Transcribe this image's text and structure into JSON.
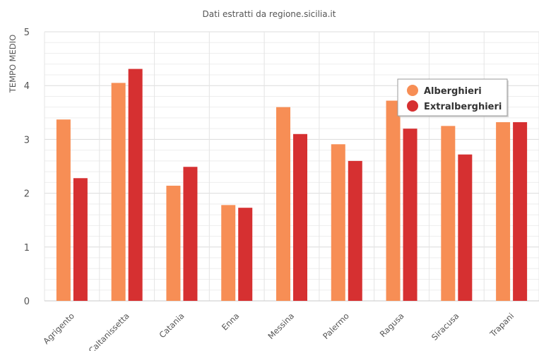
{
  "chart_data": {
    "type": "bar",
    "title": "Dati estratti da regione.sicilia.it",
    "ylabel": "TEMPO MEDIO",
    "xlabel": "",
    "ylim": [
      0,
      5
    ],
    "yticks": [
      0,
      1,
      2,
      3,
      4,
      5
    ],
    "grid": true,
    "legend_position": "top-right",
    "categories": [
      "Agrigento",
      "Caltanissetta",
      "Catania",
      "Enna",
      "Messina",
      "Palermo",
      "Ragusa",
      "Siracusa",
      "Trapani"
    ],
    "series": [
      {
        "name": "Alberghieri",
        "color": "#f78e55",
        "values": [
          3.37,
          4.05,
          2.14,
          1.78,
          3.6,
          2.91,
          3.72,
          3.25,
          3.32
        ]
      },
      {
        "name": "Extralberghieri",
        "color": "#d63031",
        "values": [
          2.28,
          4.31,
          2.49,
          1.73,
          3.1,
          2.6,
          3.2,
          2.72,
          3.32
        ]
      }
    ]
  }
}
